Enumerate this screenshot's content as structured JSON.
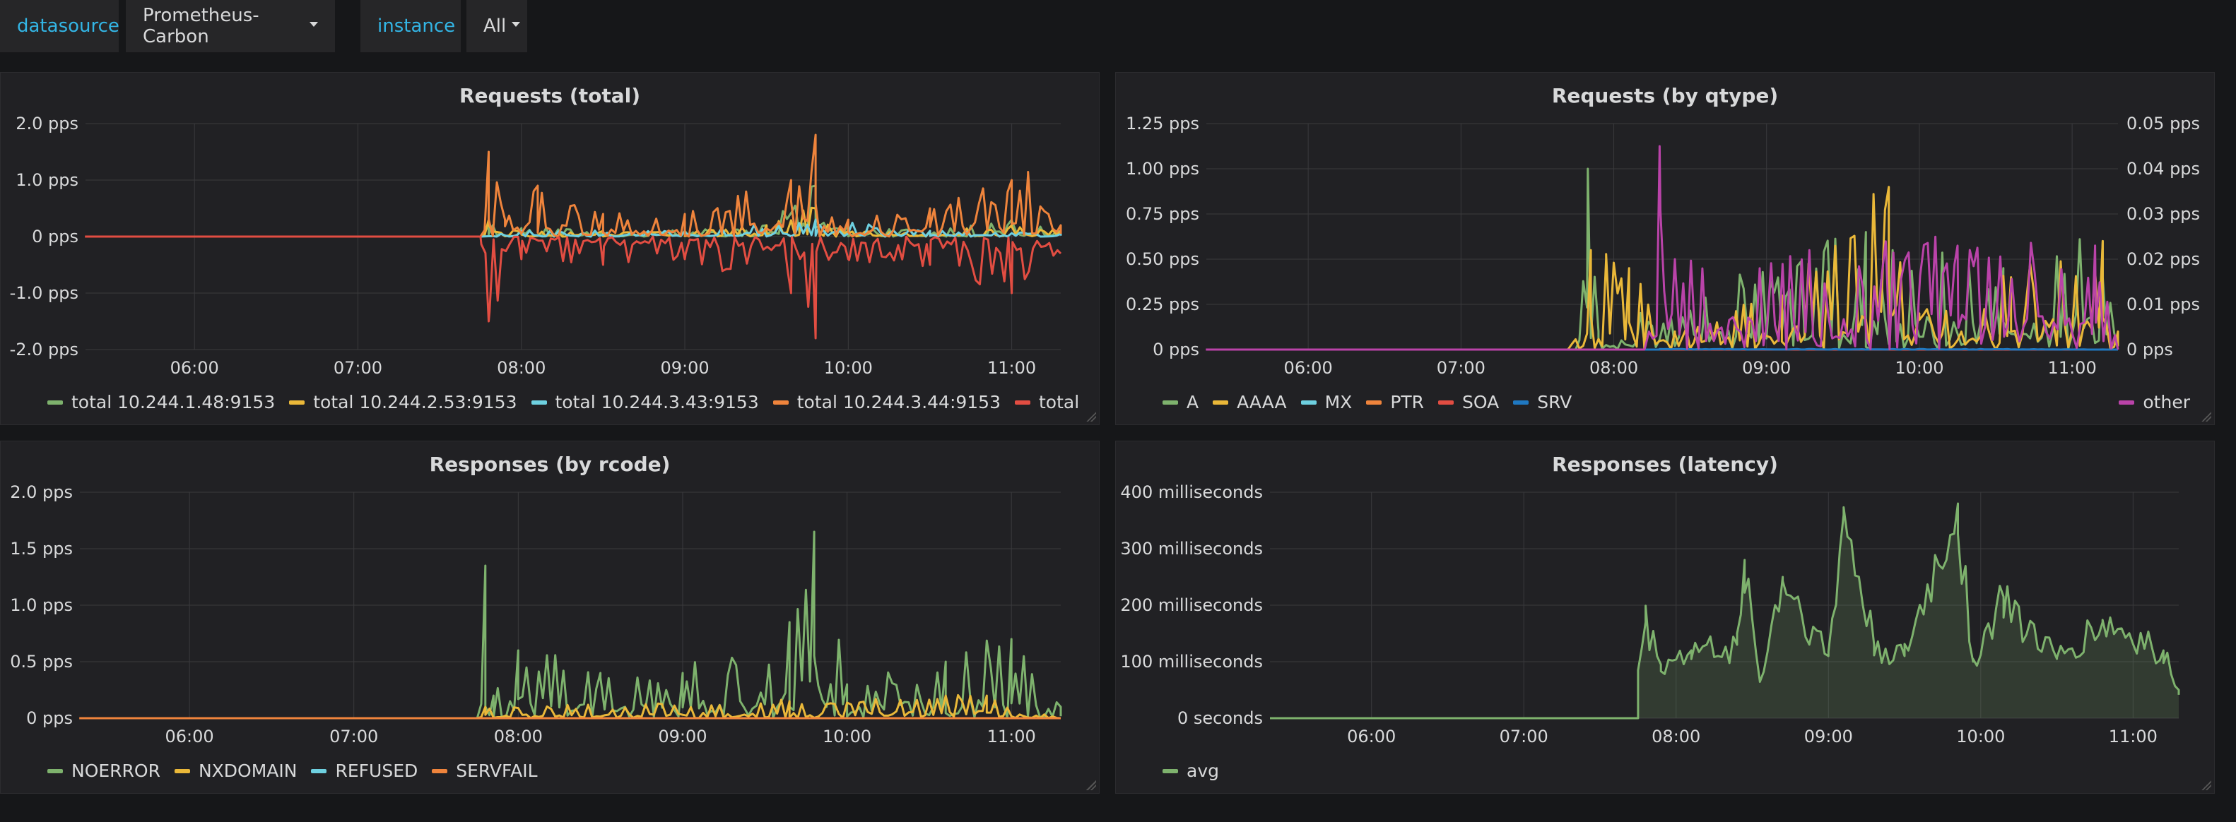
{
  "colors": {
    "green": "#7eb26d",
    "yellow": "#eab839",
    "cyan": "#6ed0e0",
    "orange": "#ef843c",
    "red": "#e24d42",
    "blue": "#1f78c1",
    "magenta": "#ba43a9",
    "grid": "#3a3a3d"
  },
  "topbar": {
    "datasource_label": "datasource",
    "datasource_value": "Prometheus-Carbon",
    "instance_label": "instance",
    "instance_value": "All"
  },
  "panels": {
    "requests_total": {
      "title": "Requests (total)",
      "legend": [
        {
          "name": "total 10.244.1.48:9153",
          "color": "#7eb26d"
        },
        {
          "name": "total 10.244.2.53:9153",
          "color": "#eab839"
        },
        {
          "name": "total 10.244.3.43:9153",
          "color": "#6ed0e0"
        },
        {
          "name": "total 10.244.3.44:9153",
          "color": "#ef843c"
        },
        {
          "name": "total",
          "color": "#e24d42"
        }
      ]
    },
    "requests_by_qtype": {
      "title": "Requests (by qtype)",
      "legend": [
        {
          "name": "A",
          "color": "#7eb26d"
        },
        {
          "name": "AAAA",
          "color": "#eab839"
        },
        {
          "name": "MX",
          "color": "#6ed0e0"
        },
        {
          "name": "PTR",
          "color": "#ef843c"
        },
        {
          "name": "SOA",
          "color": "#e24d42"
        },
        {
          "name": "SRV",
          "color": "#1f78c1"
        }
      ],
      "legend_right": {
        "name": "other",
        "color": "#ba43a9"
      }
    },
    "responses_by_rcode": {
      "title": "Responses (by rcode)",
      "legend": [
        {
          "name": "NOERROR",
          "color": "#7eb26d"
        },
        {
          "name": "NXDOMAIN",
          "color": "#eab839"
        },
        {
          "name": "REFUSED",
          "color": "#6ed0e0"
        },
        {
          "name": "SERVFAIL",
          "color": "#ef843c"
        }
      ]
    },
    "responses_latency": {
      "title": "Responses (latency)",
      "legend": [
        {
          "name": "avg",
          "color": "#7eb26d"
        }
      ]
    }
  },
  "chart_data": [
    {
      "type": "line",
      "title": "Requests (total)",
      "x_ticks": [
        "06:00",
        "07:00",
        "08:00",
        "09:00",
        "10:00",
        "11:00"
      ],
      "y_ticks": [
        "2.0 pps",
        "1.0 pps",
        "0 pps",
        "-1.0 pps",
        "-2.0 pps"
      ],
      "ylim": [
        -2.0,
        2.0
      ],
      "x_range": [
        "05:20",
        "11:18"
      ],
      "grid": true,
      "legend_position": "bottom",
      "series": [
        {
          "name": "total 10.244.1.48:9153",
          "color": "#7eb26d",
          "values": [
            [
              7.75,
              0
            ],
            [
              7.8,
              0.2
            ],
            [
              8.0,
              0.15
            ],
            [
              8.5,
              0.1
            ],
            [
              9.0,
              0.1
            ],
            [
              9.5,
              0.2
            ],
            [
              9.8,
              0.9
            ],
            [
              10.0,
              0.2
            ],
            [
              10.5,
              0.1
            ],
            [
              11.0,
              0.3
            ],
            [
              11.3,
              0.1
            ]
          ]
        },
        {
          "name": "total 10.244.2.53:9153",
          "color": "#eab839",
          "values": [
            [
              7.75,
              0
            ],
            [
              7.8,
              0.3
            ],
            [
              8.0,
              0.1
            ],
            [
              8.5,
              0.1
            ],
            [
              9.0,
              0.1
            ],
            [
              9.5,
              0.2
            ],
            [
              9.8,
              0.5
            ],
            [
              10.0,
              0.1
            ],
            [
              10.5,
              0.1
            ],
            [
              11.0,
              0.2
            ],
            [
              11.3,
              0.1
            ]
          ]
        },
        {
          "name": "total 10.244.3.43:9153",
          "color": "#6ed0e0",
          "values": [
            [
              7.75,
              0
            ],
            [
              8.0,
              0.1
            ],
            [
              9.0,
              0.1
            ],
            [
              9.8,
              0.3
            ],
            [
              10.5,
              0.1
            ],
            [
              11.3,
              0.05
            ]
          ]
        },
        {
          "name": "total 10.244.3.44:9153",
          "color": "#ef843c",
          "values": [
            [
              7.75,
              0
            ],
            [
              7.8,
              1.5
            ],
            [
              7.9,
              0.3
            ],
            [
              8.1,
              0.9
            ],
            [
              8.5,
              0.4
            ],
            [
              9.0,
              0.4
            ],
            [
              9.65,
              1.0
            ],
            [
              9.8,
              1.8
            ],
            [
              10.0,
              0.3
            ],
            [
              10.5,
              0.5
            ],
            [
              11.0,
              1.0
            ],
            [
              11.1,
              1.1
            ],
            [
              11.3,
              0.2
            ]
          ]
        },
        {
          "name": "total",
          "color": "#e24d42",
          "values": [
            [
              5.33,
              0
            ],
            [
              7.75,
              0
            ],
            [
              7.8,
              -1.5
            ],
            [
              8.0,
              -0.4
            ],
            [
              8.5,
              -0.5
            ],
            [
              9.0,
              -0.4
            ],
            [
              9.65,
              -1.0
            ],
            [
              9.8,
              -1.8
            ],
            [
              10.0,
              -0.4
            ],
            [
              10.5,
              -0.5
            ],
            [
              11.0,
              -1.0
            ],
            [
              11.3,
              -0.3
            ]
          ]
        }
      ]
    },
    {
      "type": "line",
      "title": "Requests (by qtype)",
      "x_ticks": [
        "06:00",
        "07:00",
        "08:00",
        "09:00",
        "10:00",
        "11:00"
      ],
      "y_ticks_left": [
        "1.25 pps",
        "1.00 pps",
        "0.75 pps",
        "0.50 pps",
        "0.25 pps",
        "0 pps"
      ],
      "y_ticks_right": [
        "0.05 pps",
        "0.04 pps",
        "0.03 pps",
        "0.02 pps",
        "0.01 pps",
        "0 pps"
      ],
      "ylim_left": [
        0,
        1.25
      ],
      "ylim_right": [
        0,
        0.05
      ],
      "x_range": [
        "05:20",
        "11:18"
      ],
      "grid": true,
      "legend_position": "bottom",
      "series": [
        {
          "name": "A",
          "color": "#7eb26d",
          "values": [
            [
              7.75,
              0
            ],
            [
              7.83,
              1.0
            ],
            [
              7.9,
              0.1
            ],
            [
              9.65,
              0.65
            ],
            [
              10.55,
              0.45
            ],
            [
              11.2,
              0.6
            ],
            [
              11.3,
              0.0
            ]
          ]
        },
        {
          "name": "AAAA",
          "color": "#eab839",
          "values": [
            [
              7.7,
              0
            ],
            [
              7.85,
              0.55
            ],
            [
              7.95,
              0.5
            ],
            [
              8.1,
              0.45
            ],
            [
              8.4,
              0.1
            ],
            [
              9.1,
              0.3
            ],
            [
              9.8,
              0.9
            ],
            [
              10.0,
              0.2
            ],
            [
              10.6,
              0.4
            ],
            [
              11.2,
              0.6
            ],
            [
              11.3,
              0.1
            ]
          ]
        },
        {
          "name": "MX",
          "color": "#6ed0e0",
          "values": [
            [
              7.7,
              0
            ],
            [
              11.3,
              0
            ]
          ]
        },
        {
          "name": "PTR",
          "color": "#ef843c",
          "values": [
            [
              7.7,
              0
            ],
            [
              11.3,
              0
            ]
          ]
        },
        {
          "name": "SOA",
          "color": "#e24d42",
          "values": [
            [
              7.7,
              0
            ],
            [
              11.3,
              0
            ]
          ]
        },
        {
          "name": "SRV",
          "color": "#1f78c1",
          "values": [
            [
              8.3,
              0.003
            ],
            [
              10.5,
              0.003
            ],
            [
              11.3,
              0.0
            ]
          ]
        },
        {
          "name": "other",
          "color": "#ba43a9",
          "axis": "right",
          "values": [
            [
              5.33,
              0
            ],
            [
              8.2,
              0
            ],
            [
              8.3,
              0.045
            ],
            [
              8.4,
              0.02
            ],
            [
              10.25,
              0.023
            ],
            [
              11.15,
              0.023
            ],
            [
              11.3,
              0
            ]
          ]
        }
      ]
    },
    {
      "type": "line",
      "title": "Responses (by rcode)",
      "x_ticks": [
        "06:00",
        "07:00",
        "08:00",
        "09:00",
        "10:00",
        "11:00"
      ],
      "y_ticks": [
        "2.0 pps",
        "1.5 pps",
        "1.0 pps",
        "0.5 pps",
        "0 pps"
      ],
      "ylim": [
        0,
        2.0
      ],
      "x_range": [
        "05:20",
        "11:18"
      ],
      "grid": true,
      "legend_position": "bottom",
      "series": [
        {
          "name": "NOERROR",
          "color": "#7eb26d",
          "values": [
            [
              7.75,
              0
            ],
            [
              7.8,
              1.35
            ],
            [
              7.85,
              0.2
            ],
            [
              8.0,
              0.6
            ],
            [
              8.5,
              0.4
            ],
            [
              9.0,
              0.4
            ],
            [
              9.65,
              0.85
            ],
            [
              9.8,
              1.65
            ],
            [
              10.0,
              0.3
            ],
            [
              10.6,
              0.5
            ],
            [
              11.0,
              0.7
            ],
            [
              11.3,
              0.1
            ]
          ]
        },
        {
          "name": "NXDOMAIN",
          "color": "#eab839",
          "values": [
            [
              7.75,
              0
            ],
            [
              7.8,
              0.1
            ],
            [
              9.65,
              0.15
            ],
            [
              10.85,
              0.2
            ],
            [
              11.3,
              0
            ]
          ]
        },
        {
          "name": "REFUSED",
          "color": "#6ed0e0",
          "values": [
            [
              7.7,
              0
            ],
            [
              11.3,
              0
            ]
          ]
        },
        {
          "name": "SERVFAIL",
          "color": "#ef843c",
          "values": [
            [
              5.33,
              0
            ],
            [
              11.3,
              0
            ]
          ]
        }
      ]
    },
    {
      "type": "area",
      "title": "Responses (latency)",
      "x_ticks": [
        "06:00",
        "07:00",
        "08:00",
        "09:00",
        "10:00",
        "11:00"
      ],
      "y_ticks": [
        "400 milliseconds",
        "300 milliseconds",
        "200 milliseconds",
        "100 milliseconds",
        "0 seconds"
      ],
      "ylim": [
        0,
        400
      ],
      "x_range": [
        "05:20",
        "11:18"
      ],
      "grid": true,
      "legend_position": "bottom",
      "series": [
        {
          "name": "avg",
          "color": "#7eb26d",
          "values": [
            [
              7.75,
              85
            ],
            [
              7.8,
              170
            ],
            [
              7.9,
              95
            ],
            [
              8.1,
              120
            ],
            [
              8.4,
              130
            ],
            [
              8.45,
              280
            ],
            [
              8.55,
              65
            ],
            [
              8.7,
              250
            ],
            [
              9.0,
              110
            ],
            [
              9.1,
              360
            ],
            [
              9.3,
              130
            ],
            [
              9.5,
              110
            ],
            [
              9.85,
              380
            ],
            [
              9.95,
              100
            ],
            [
              10.15,
              215
            ],
            [
              10.5,
              105
            ],
            [
              10.8,
              170
            ],
            [
              11.2,
              120
            ],
            [
              11.3,
              50
            ]
          ]
        }
      ]
    }
  ]
}
